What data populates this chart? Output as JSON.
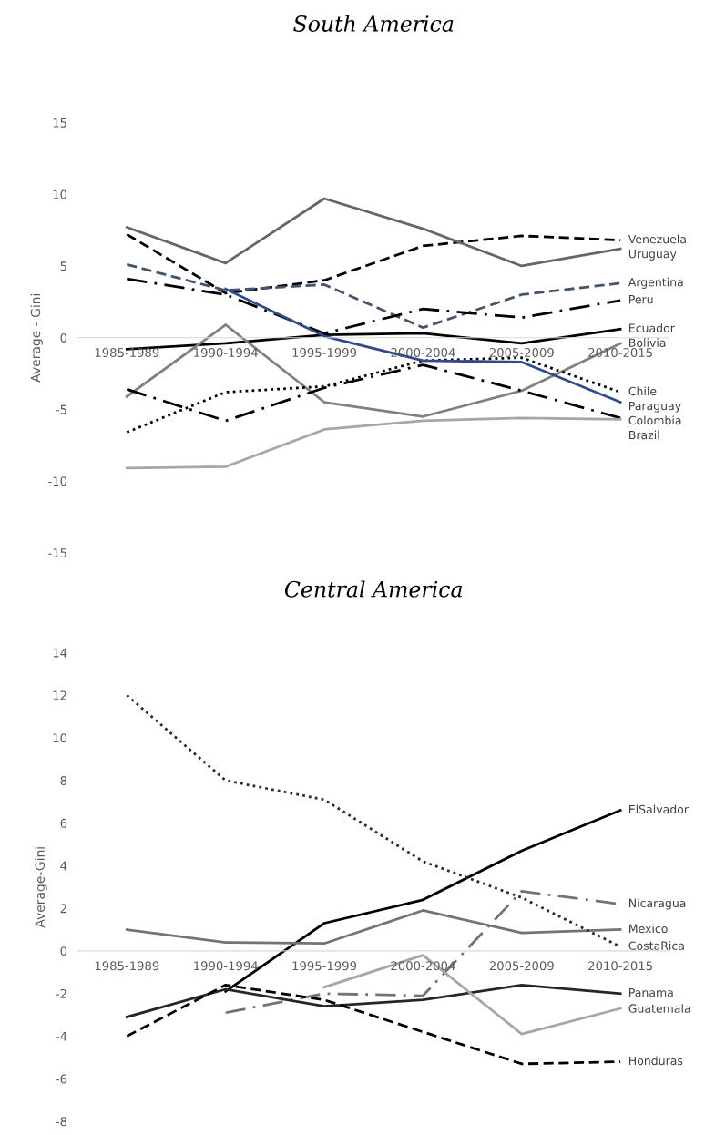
{
  "chart_data": [
    {
      "type": "line",
      "title": "South America",
      "ylabel": "Average - Gini",
      "categories": [
        "1985-1989",
        "1990-1994",
        "1995-1999",
        "2000-2004",
        "2005-2009",
        "2010-2015"
      ],
      "ylim": [
        -15,
        15
      ],
      "yticks": [
        -15,
        -10,
        -5,
        0,
        5,
        10,
        15
      ],
      "grid": false,
      "legend": false,
      "marker": "none",
      "series": [
        {
          "name": "Venezuela",
          "color": "#000000",
          "line_style": "dashed",
          "values": [
            7.2,
            3.1,
            4.0,
            6.4,
            7.1,
            6.8
          ]
        },
        {
          "name": "Uruguay",
          "color": "#666666",
          "line_style": "solid",
          "values": [
            7.7,
            5.2,
            9.7,
            7.6,
            5.0,
            6.2
          ]
        },
        {
          "name": "Argentina",
          "color": "#44546a",
          "line_style": "dashed",
          "values": [
            5.1,
            3.3,
            3.7,
            0.7,
            3.0,
            3.8
          ]
        },
        {
          "name": "Peru",
          "color": "#000000",
          "line_style": "dashdot",
          "values": [
            4.1,
            3.0,
            0.3,
            2.0,
            1.4,
            2.6
          ]
        },
        {
          "name": "Ecuador",
          "color": "#000000",
          "line_style": "solid",
          "values": [
            -0.8,
            -0.4,
            0.2,
            0.3,
            -0.4,
            0.6
          ]
        },
        {
          "name": "Bolivia",
          "color": "#808080",
          "line_style": "solid",
          "values": [
            -4.1,
            0.9,
            -4.5,
            -5.5,
            -3.7,
            -0.4
          ]
        },
        {
          "name": "Chile",
          "color": "#000000",
          "line_style": "dotted",
          "values": [
            -6.6,
            -3.8,
            -3.4,
            -1.6,
            -1.4,
            -3.8
          ]
        },
        {
          "name": "Paraguay",
          "color": "#2f4b8c",
          "line_style": "solid",
          "values": [
            null,
            3.4,
            0.1,
            -1.6,
            -1.7,
            -4.5
          ]
        },
        {
          "name": "Colombia",
          "color": "#000000",
          "line_style": "dashdot",
          "values": [
            -3.6,
            -5.8,
            -3.5,
            -1.9,
            -3.7,
            -5.6
          ]
        },
        {
          "name": "Brazil",
          "color": "#a6a6a6",
          "line_style": "solid",
          "values": [
            -9.1,
            -9.0,
            -6.4,
            -5.8,
            -5.6,
            -5.7
          ]
        }
      ]
    },
    {
      "type": "line",
      "title": "Central America",
      "ylabel": "Average-Gini",
      "categories": [
        "1985-1989",
        "1990-1994",
        "1995-1999",
        "2000-2004",
        "2005-2009",
        "2010-2015"
      ],
      "ylim": [
        -8,
        14
      ],
      "yticks": [
        -8,
        -6,
        -4,
        -2,
        0,
        2,
        4,
        6,
        8,
        10,
        12,
        14
      ],
      "grid": false,
      "legend": false,
      "marker": "none",
      "series": [
        {
          "name": "ElSalvador",
          "color": "#000000",
          "line_style": "solid",
          "values": [
            null,
            -1.9,
            1.3,
            2.4,
            4.7,
            6.6
          ]
        },
        {
          "name": "Nicaragua",
          "color": "#737373",
          "line_style": "dashdot",
          "values": [
            null,
            -2.9,
            -2.0,
            -2.1,
            2.8,
            2.2
          ]
        },
        {
          "name": "Mexico",
          "color": "#737373",
          "line_style": "solid",
          "values": [
            1.0,
            0.4,
            0.35,
            1.9,
            0.85,
            1.0
          ]
        },
        {
          "name": "CostaRica",
          "color": "#1f2a44",
          "line_style": "dotted",
          "values": [
            12.0,
            8.0,
            7.1,
            4.2,
            2.5,
            0.2
          ]
        },
        {
          "name": "Panama",
          "color": "#262626",
          "line_style": "solid",
          "values": [
            -3.1,
            -1.8,
            -2.6,
            -2.3,
            -1.6,
            -2.0
          ]
        },
        {
          "name": "Guatemala",
          "color": "#a6a6a6",
          "line_style": "solid",
          "values": [
            null,
            null,
            -1.7,
            -0.2,
            -3.9,
            -2.7
          ]
        },
        {
          "name": "Honduras",
          "color": "#000000",
          "line_style": "dashed",
          "values": [
            -4.0,
            -1.6,
            -2.3,
            -3.8,
            -5.3,
            -5.2
          ]
        }
      ]
    }
  ]
}
